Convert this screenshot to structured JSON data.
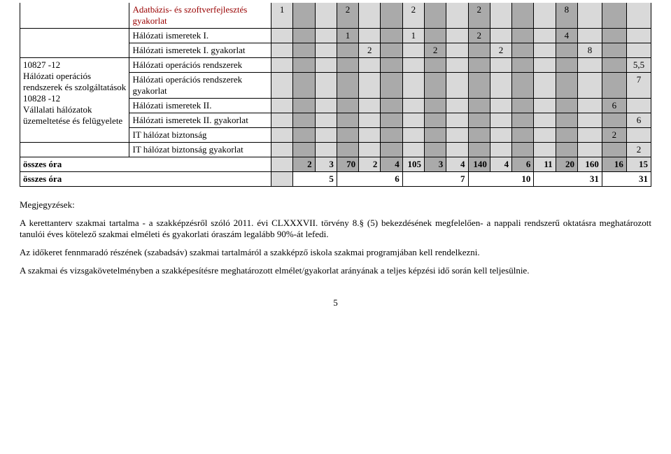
{
  "colgroup": {
    "widths": [
      "17%",
      "22%",
      "3.4%",
      "3.4%",
      "3.4%",
      "3.4%",
      "3.4%",
      "3.4%",
      "3.4%",
      "3.4%",
      "3.4%",
      "3.4%",
      "3.4%",
      "3.4%",
      "3.4%",
      "3.4%",
      "3.8%",
      "3.8%",
      "3.8%"
    ],
    "fills": [
      "",
      "",
      "fill-light",
      "fill-dark",
      "fill-light",
      "fill-dark",
      "fill-light",
      "fill-dark",
      "fill-light",
      "fill-dark",
      "fill-light",
      "fill-dark",
      "fill-light",
      "fill-dark",
      "fill-light",
      "fill-dark",
      "fill-light",
      "fill-dark",
      "fill-light"
    ]
  },
  "rows": {
    "r1": {
      "c1": "Adatbázis- és szoftverfejlesztés gyakorlat",
      "c2_color": "#990000",
      "vals": [
        "1",
        "",
        "",
        "2",
        "",
        "",
        "2",
        "",
        "",
        "2",
        "",
        "",
        "",
        "8",
        "",
        "",
        ""
      ]
    },
    "r2_title": "Hálózati ismeretek I.",
    "r2_vals": [
      "",
      "",
      "",
      "1",
      "",
      "",
      "1",
      "",
      "",
      "2",
      "",
      "",
      "",
      "4",
      "",
      "",
      ""
    ],
    "r3_title": "Hálózati ismeretek I. gyakorlat",
    "r3_vals": [
      "",
      "",
      "",
      "",
      "2",
      "",
      "",
      "2",
      "",
      "",
      "2",
      "",
      "",
      "",
      "8",
      "",
      ""
    ],
    "r4_left_a": "10827 -12\nHálózati operációs rendszerek és szolgáltatások",
    "r4_left_b": "10828 -12\nVállalati hálózatok üzemeltetése és felügyelete",
    "r4_rows": [
      {
        "sub": "Hálózati operációs rendszerek",
        "vals": [
          "",
          "",
          "",
          "",
          "",
          "",
          "",
          "",
          "",
          "",
          "",
          "",
          "",
          "",
          "",
          "",
          "5,5"
        ]
      },
      {
        "sub": "Hálózati operációs rendszerek gyakorlat",
        "vals": [
          "",
          "",
          "",
          "",
          "",
          "",
          "",
          "",
          "",
          "",
          "",
          "",
          "",
          "",
          "",
          "",
          "7"
        ]
      },
      {
        "sub": "Hálózati ismeretek II.",
        "vals": [
          "",
          "",
          "",
          "",
          "",
          "",
          "",
          "",
          "",
          "",
          "",
          "",
          "",
          "",
          "",
          "6",
          ""
        ]
      },
      {
        "sub": "Hálózati ismeretek II. gyakorlat",
        "vals": [
          "",
          "",
          "",
          "",
          "",
          "",
          "",
          "",
          "",
          "",
          "",
          "",
          "",
          "",
          "",
          "",
          "6"
        ]
      },
      {
        "sub": "IT hálózat biztonság",
        "vals": [
          "",
          "",
          "",
          "",
          "",
          "",
          "",
          "",
          "",
          "",
          "",
          "",
          "",
          "",
          "",
          "2",
          ""
        ]
      }
    ],
    "r5_sub": "IT hálózat biztonság gyakorlat",
    "r5_vals": [
      "",
      "",
      "",
      "",
      "",
      "",
      "",
      "",
      "",
      "",
      "",
      "",
      "",
      "",
      "",
      "",
      "2"
    ],
    "totals1_label": "összes óra",
    "totals1": [
      "2",
      "3",
      "70",
      "2",
      "4",
      "105",
      "3",
      "4",
      "140",
      "4",
      "6",
      "11",
      "20",
      "160",
      "16",
      "15"
    ],
    "totals2_label": "összes óra",
    "totals2_pairs": [
      {
        "v": "5",
        "span": 2
      },
      {
        "v": "6",
        "span": 3
      },
      {
        "v": "7",
        "span": 3
      },
      {
        "v": "10",
        "span": 3
      },
      {
        "v": "31",
        "span": 3
      },
      {
        "v": "31",
        "span": 2
      }
    ]
  },
  "notes": {
    "heading": "Megjegyzések:",
    "p1": "A kerettanterv szakmai tartalma - a szakképzésről szóló 2011. évi CLXXXVII. törvény 8.§ (5) bekezdésének megfelelően- a nappali rendszerű oktatásra meghatározott tanulói éves kötelező szakmai elméleti és gyakorlati óraszám legalább 90%-át lefedi.",
    "p2": "Az időkeret fennmaradó részének (szabadsáv) szakmai tartalmáról a szakképző iskola szakmai programjában kell rendelkezni.",
    "p3": "A szakmai és vizsgakövetelményben a szakképesítésre meghatározott elmélet/gyakorlat arányának a teljes képzési idő során kell teljesülnie."
  },
  "page_number": "5"
}
